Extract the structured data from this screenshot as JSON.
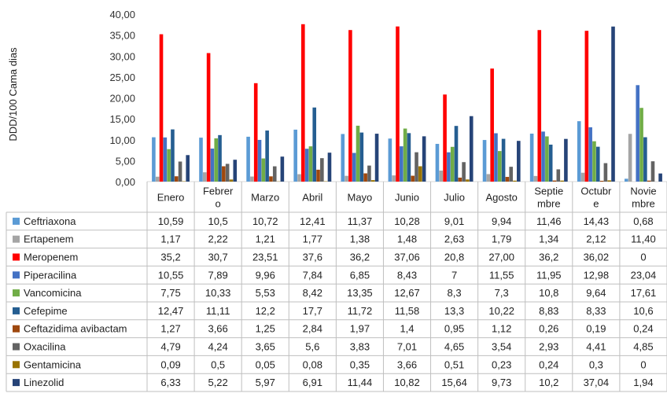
{
  "chart_data": {
    "type": "bar",
    "ylabel": "DDD/100 Cama dias",
    "ylim": [
      0,
      40
    ],
    "ytick_labels": [
      "0,00",
      "5,00",
      "10,00",
      "15,00",
      "20,00",
      "25,00",
      "30,00",
      "35,00",
      "40,00"
    ],
    "grid": false,
    "legend": "data-table",
    "categories": [
      [
        "Enero"
      ],
      [
        "Febrer",
        "o"
      ],
      [
        "Marzo"
      ],
      [
        "Abril"
      ],
      [
        "Mayo"
      ],
      [
        "Junio"
      ],
      [
        "Julio"
      ],
      [
        "Agosto"
      ],
      [
        "Septie",
        "mbre"
      ],
      [
        "Octubr",
        "e"
      ],
      [
        "Novie",
        "mbre"
      ]
    ],
    "series": [
      {
        "name": "Ceftriaxona",
        "color": "#5B9BD5",
        "values": [
          10.59,
          10.5,
          10.72,
          12.41,
          11.37,
          10.28,
          9.01,
          9.94,
          11.46,
          14.43,
          0.68
        ],
        "labels": [
          "10,59",
          "10,5",
          "10,72",
          "12,41",
          "11,37",
          "10,28",
          "9,01",
          "9,94",
          "11,46",
          "14,43",
          "0,68"
        ]
      },
      {
        "name": "Ertapenem",
        "color": "#A5A5A5",
        "values": [
          1.17,
          2.22,
          1.21,
          1.77,
          1.38,
          1.48,
          2.63,
          1.79,
          1.34,
          2.12,
          11.4
        ],
        "labels": [
          "1,17",
          "2,22",
          "1,21",
          "1,77",
          "1,38",
          "1,48",
          "2,63",
          "1,79",
          "1,34",
          "2,12",
          "11,40"
        ]
      },
      {
        "name": "Meropenem",
        "color": "#FF0000",
        "values": [
          35.2,
          30.7,
          23.51,
          37.6,
          36.2,
          37.06,
          20.8,
          27.0,
          36.2,
          36.02,
          0
        ],
        "labels": [
          "35,2",
          "30,7",
          "23,51",
          "37,6",
          "36,2",
          "37,06",
          "20,8",
          "27,00",
          "36,2",
          "36,02",
          "0"
        ]
      },
      {
        "name": "Piperacilina",
        "color": "#4472C4",
        "values": [
          10.55,
          7.89,
          9.96,
          7.84,
          6.85,
          8.43,
          7,
          11.55,
          11.95,
          12.98,
          23.04
        ],
        "labels": [
          "10,55",
          "7,89",
          "9,96",
          "7,84",
          "6,85",
          "8,43",
          "7",
          "11,55",
          "11,95",
          "12,98",
          "23,04"
        ]
      },
      {
        "name": "Vancomicina",
        "color": "#70AD47",
        "values": [
          7.75,
          10.33,
          5.53,
          8.42,
          13.35,
          12.67,
          8.3,
          7.3,
          10.8,
          9.64,
          17.61
        ],
        "labels": [
          "7,75",
          "10,33",
          "5,53",
          "8,42",
          "13,35",
          "12,67",
          "8,3",
          "7,3",
          "10,8",
          "9,64",
          "17,61"
        ]
      },
      {
        "name": "Cefepime",
        "color": "#255E91",
        "values": [
          12.47,
          11.11,
          12.2,
          17.7,
          11.72,
          11.58,
          13.3,
          10.22,
          8.83,
          8.33,
          10.6
        ],
        "labels": [
          "12,47",
          "11,11",
          "12,2",
          "17,7",
          "11,72",
          "11,58",
          "13,3",
          "10,22",
          "8,83",
          "8,33",
          "10,6"
        ]
      },
      {
        "name": "Ceftazidima avibactam",
        "color": "#9E480E",
        "values": [
          1.27,
          3.66,
          1.25,
          2.84,
          1.97,
          1.4,
          0.95,
          1.12,
          0.26,
          0.19,
          0.24
        ],
        "labels": [
          "1,27",
          "3,66",
          "1,25",
          "2,84",
          "1,97",
          "1,4",
          "0,95",
          "1,12",
          "0,26",
          "0,19",
          "0,24"
        ]
      },
      {
        "name": "Oxacilina",
        "color": "#636363",
        "values": [
          4.79,
          4.24,
          3.65,
          5.6,
          3.83,
          7.01,
          4.65,
          3.54,
          2.93,
          4.41,
          4.85
        ],
        "labels": [
          "4,79",
          "4,24",
          "3,65",
          "5,6",
          "3,83",
          "7,01",
          "4,65",
          "3,54",
          "2,93",
          "4,41",
          "4,85"
        ]
      },
      {
        "name": "Gentamicina",
        "color": "#997300",
        "values": [
          0.09,
          0.5,
          0.05,
          0.08,
          0.35,
          3.66,
          0.51,
          0.23,
          0.24,
          0.3,
          0
        ],
        "labels": [
          "0,09",
          "0,5",
          "0,05",
          "0,08",
          "0,35",
          "3,66",
          "0,51",
          "0,23",
          "0,24",
          "0,3",
          "0"
        ]
      },
      {
        "name": "Linezolid",
        "color": "#264478",
        "values": [
          6.33,
          5.22,
          5.97,
          6.91,
          11.44,
          10.82,
          15.64,
          9.73,
          10.2,
          37.04,
          1.94
        ],
        "labels": [
          "6,33",
          "5,22",
          "5,97",
          "6,91",
          "11,44",
          "10,82",
          "15,64",
          "9,73",
          "10,2",
          "37,04",
          "1,94"
        ]
      }
    ]
  }
}
